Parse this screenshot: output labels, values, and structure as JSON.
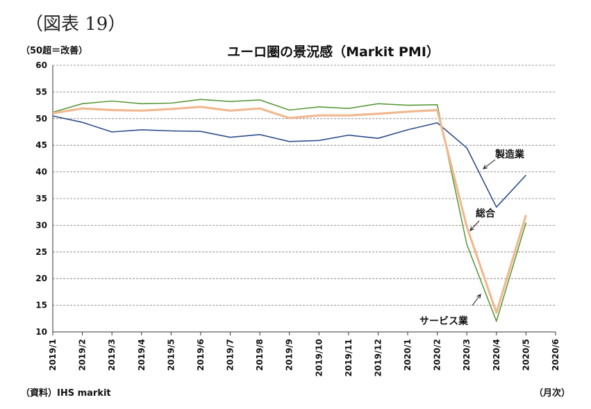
{
  "figure_label": "（図表 19）",
  "unit_note": "（50超＝改善）",
  "source_note": "（資料）IHS markit",
  "x_unit_note": "（月次）",
  "chart_data": {
    "type": "line",
    "title": "ユーロ圏の景況感（Markit PMI）",
    "xlabel": "",
    "ylabel": "",
    "ylim": [
      10,
      60
    ],
    "yticks": [
      10,
      15,
      20,
      25,
      30,
      35,
      40,
      45,
      50,
      55,
      60
    ],
    "grid": true,
    "x": [
      "2019/1",
      "2019/2",
      "2019/3",
      "2019/4",
      "2019/5",
      "2019/6",
      "2019/7",
      "2019/8",
      "2019/9",
      "2019/10",
      "2019/11",
      "2019/12",
      "2020/1",
      "2020/2",
      "2020/3",
      "2020/4",
      "2020/5",
      "2020/6"
    ],
    "series": [
      {
        "name": "製造業",
        "color": "#2e4d8a",
        "width": 1.6,
        "values": [
          50.5,
          49.3,
          47.5,
          47.9,
          47.7,
          47.6,
          46.5,
          47.0,
          45.7,
          45.9,
          46.9,
          46.3,
          47.9,
          49.2,
          44.5,
          33.4,
          39.4,
          null
        ]
      },
      {
        "name": "総合",
        "color": "#f0b890",
        "width": 3.2,
        "values": [
          51.0,
          51.9,
          51.6,
          51.5,
          51.8,
          52.2,
          51.5,
          51.9,
          50.1,
          50.6,
          50.6,
          50.9,
          51.3,
          51.6,
          29.7,
          13.6,
          31.9,
          null
        ]
      },
      {
        "name": "サービス業",
        "color": "#5a9a3a",
        "width": 1.6,
        "values": [
          51.2,
          52.8,
          53.3,
          52.8,
          52.9,
          53.6,
          53.2,
          53.5,
          51.6,
          52.2,
          51.9,
          52.8,
          52.5,
          52.6,
          26.4,
          12.0,
          30.5,
          null
        ]
      }
    ],
    "annotations": [
      {
        "label": "製造業",
        "series": "製造業"
      },
      {
        "label": "総合",
        "series": "総合"
      },
      {
        "label": "サービス業",
        "series": "サービス業"
      }
    ]
  }
}
